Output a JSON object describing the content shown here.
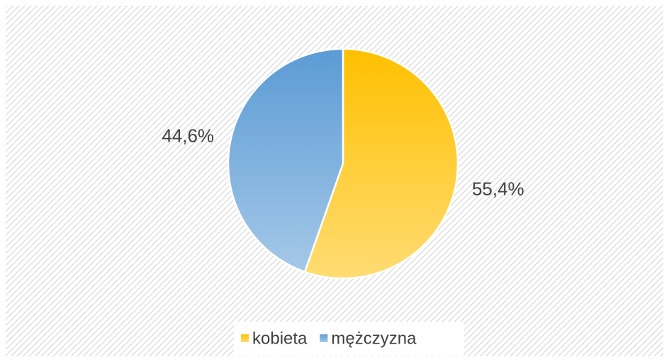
{
  "chart_data": {
    "type": "pie",
    "categories": [
      "kobieta",
      "mężczyzna"
    ],
    "values": [
      55.4,
      44.6
    ],
    "value_labels": [
      "55,4%",
      "44,6%"
    ],
    "colors": [
      "#ffc000",
      "#5b9bd5"
    ]
  }
}
